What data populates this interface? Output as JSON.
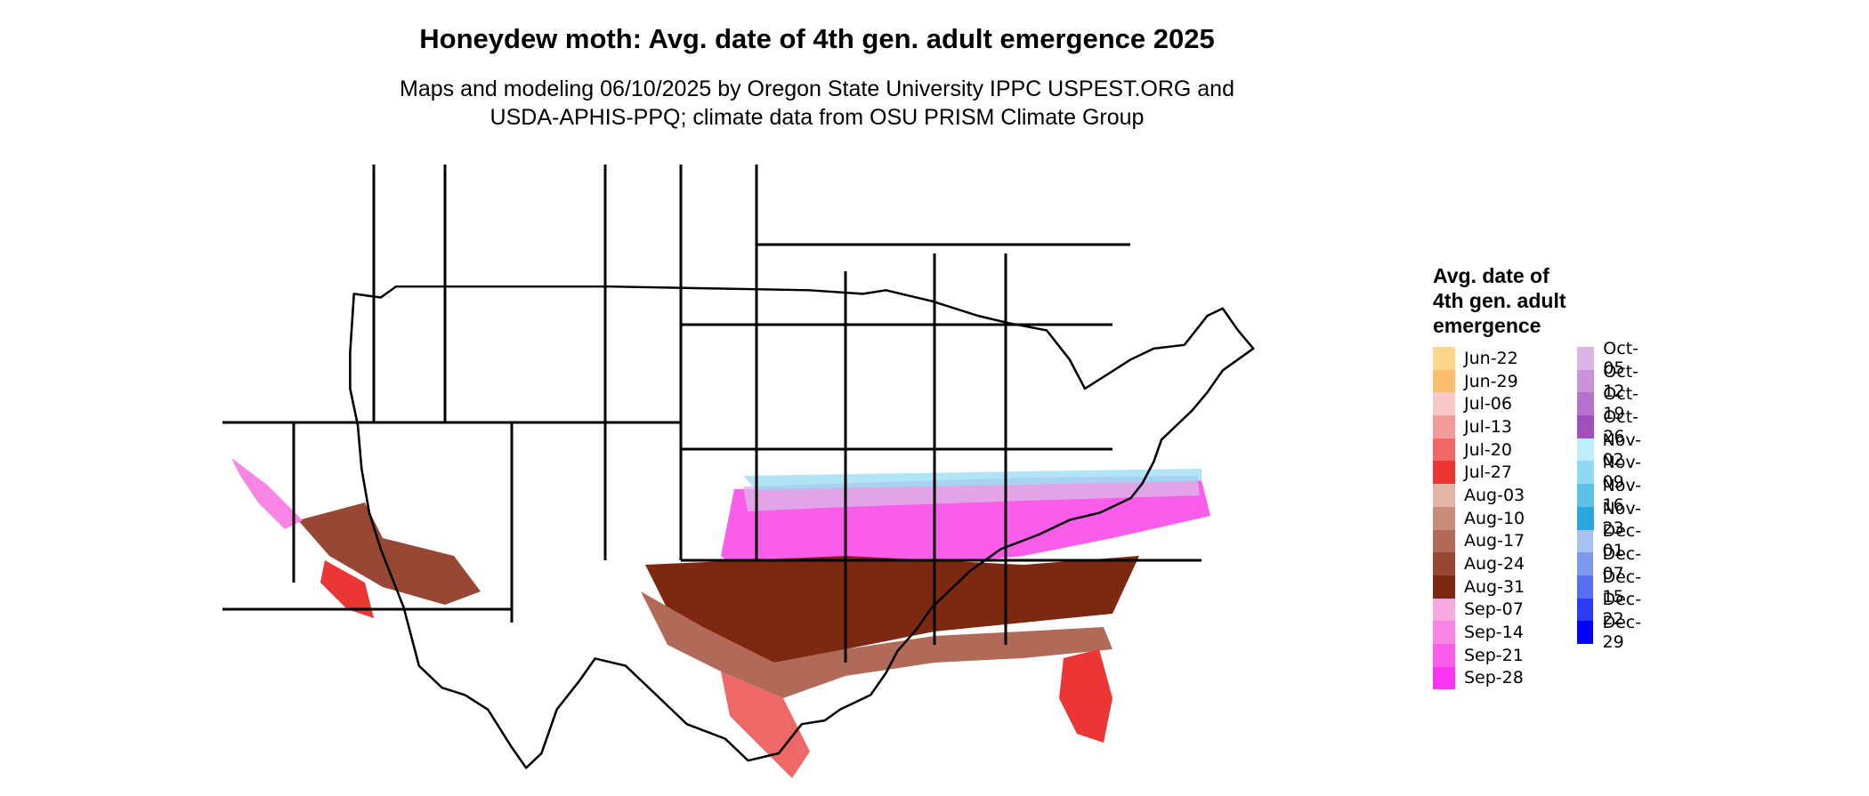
{
  "header": {
    "title": "Honeydew moth: Avg. date of 4th gen. adult emergence 2025",
    "subtitle_line1": "Maps and modeling 06/10/2025 by Oregon State University IPPC USPEST.ORG and",
    "subtitle_line2": "USDA-APHIS-PPQ; climate data from OSU PRISM Climate Group"
  },
  "legend": {
    "title_lines": [
      "Avg. date of",
      "4th gen. adult",
      "emergence"
    ],
    "col1": [
      {
        "label": "Jun-22",
        "color": "#fcd68a"
      },
      {
        "label": "Jun-29",
        "color": "#fbbd6f"
      },
      {
        "label": "Jul-06",
        "color": "#f6c8c8"
      },
      {
        "label": "Jul-13",
        "color": "#f29b9b"
      },
      {
        "label": "Jul-20",
        "color": "#ef6868"
      },
      {
        "label": "Jul-27",
        "color": "#ec3535"
      },
      {
        "label": "Aug-03",
        "color": "#e3b5a6"
      },
      {
        "label": "Aug-10",
        "color": "#c98c7b"
      },
      {
        "label": "Aug-17",
        "color": "#b06a57"
      },
      {
        "label": "Aug-24",
        "color": "#974734"
      },
      {
        "label": "Aug-31",
        "color": "#7d2810"
      },
      {
        "label": "Sep-07",
        "color": "#f8a9e0"
      },
      {
        "label": "Sep-14",
        "color": "#f885e4"
      },
      {
        "label": "Sep-21",
        "color": "#f95dea"
      },
      {
        "label": "Sep-28",
        "color": "#fa34f0"
      }
    ],
    "col2": [
      {
        "label": "Oct-05",
        "color": "#dcb5e6"
      },
      {
        "label": "Oct-12",
        "color": "#c994d8"
      },
      {
        "label": "Oct-19",
        "color": "#b572ca"
      },
      {
        "label": "Oct-26",
        "color": "#a050bd"
      },
      {
        "label": "Nov-02",
        "color": "#bfeefb"
      },
      {
        "label": "Nov-09",
        "color": "#90d9f2"
      },
      {
        "label": "Nov-16",
        "color": "#5ec1e8"
      },
      {
        "label": "Nov-23",
        "color": "#2aa8de"
      },
      {
        "label": "Dec-01",
        "color": "#a6c2ee"
      },
      {
        "label": "Dec-07",
        "color": "#7d98ec"
      },
      {
        "label": "Dec-15",
        "color": "#566ef0"
      },
      {
        "label": "Dec-22",
        "color": "#2a3af5"
      },
      {
        "label": "Dec-29",
        "color": "#0000ff"
      }
    ]
  }
}
